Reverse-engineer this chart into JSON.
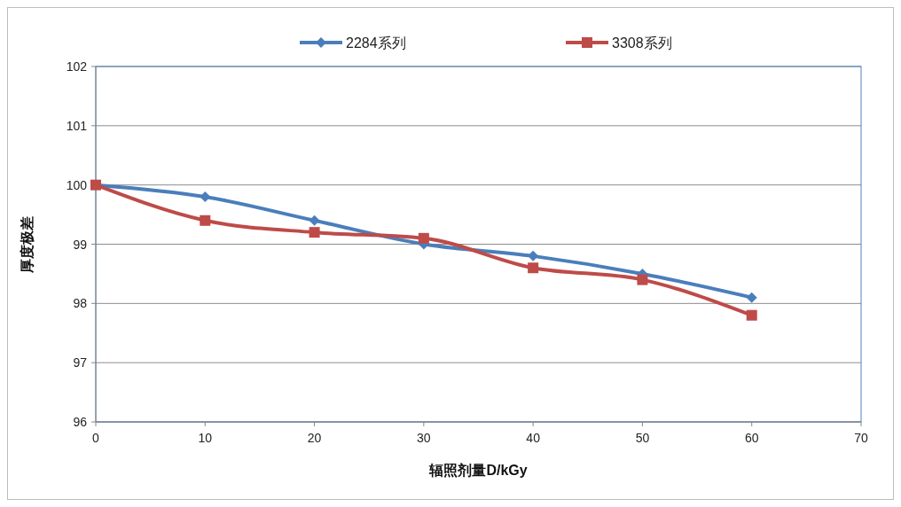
{
  "chart_data": {
    "type": "line",
    "xlabel": "辐照剂量D/kGy",
    "ylabel": "厚度极差",
    "x": [
      0,
      10,
      20,
      30,
      40,
      50,
      60
    ],
    "series": [
      {
        "name": "2284系列",
        "color": "#4a7ebb",
        "marker": "diamond",
        "values": [
          100,
          99.8,
          99.4,
          99.0,
          98.8,
          98.5,
          98.1
        ]
      },
      {
        "name": "3308系列",
        "color": "#be4b48",
        "marker": "square",
        "values": [
          100,
          99.4,
          99.2,
          99.1,
          98.6,
          98.4,
          97.8
        ]
      }
    ],
    "xlim": [
      0,
      70
    ],
    "xticks": [
      0,
      10,
      20,
      30,
      40,
      50,
      60,
      70
    ],
    "ylim": [
      96,
      102
    ],
    "yticks": [
      96,
      97,
      98,
      99,
      100,
      101,
      102
    ],
    "grid": "y",
    "legend": "top"
  }
}
